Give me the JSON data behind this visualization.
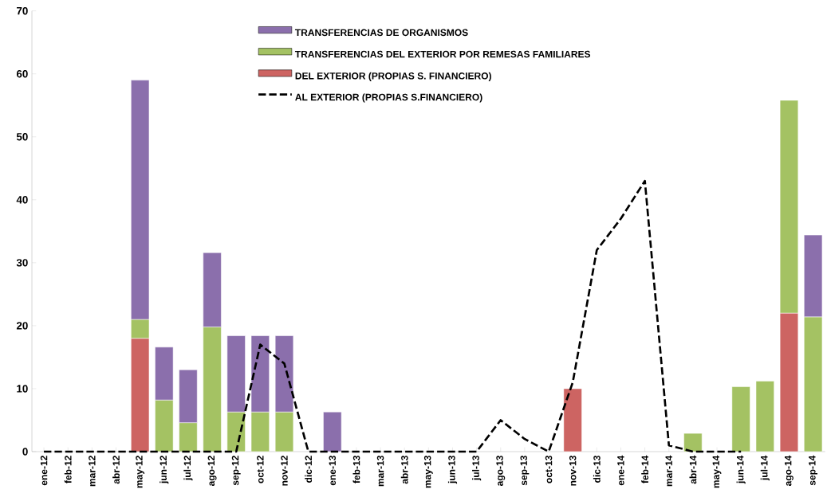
{
  "chart_data": {
    "type": "bar",
    "stacked": true,
    "legend": "top",
    "grid": false,
    "categories": [
      "ene-12",
      "feb-12",
      "mar-12",
      "abr-12",
      "may-12",
      "jun-12",
      "jul-12",
      "ago-12",
      "sep-12",
      "oct-12",
      "nov-12",
      "dic-12",
      "ene-13",
      "feb-13",
      "mar-13",
      "abr-13",
      "may-13",
      "jun-13",
      "jul-13",
      "ago-13",
      "sep-13",
      "oct-13",
      "nov-13",
      "dic-13",
      "ene-14",
      "feb-14",
      "mar-14",
      "abr-14",
      "may-14",
      "jun-14",
      "jul-14",
      "ago-14",
      "sep-14"
    ],
    "series": [
      {
        "name": "DEL EXTERIOR (PROPIAS S. FINANCIERO)",
        "color": "#cd6462",
        "values": [
          0,
          0,
          0,
          0,
          18,
          0,
          0,
          0,
          0,
          0,
          0,
          0,
          0,
          0,
          0,
          0,
          0,
          0,
          0,
          0,
          0,
          0,
          10,
          0,
          0,
          0,
          0,
          0,
          0,
          0,
          0,
          22,
          0
        ]
      },
      {
        "name": "TRANSFERENCIAS DEL EXTERIOR POR REMESAS FAMILIARES",
        "color": "#a4c263",
        "values": [
          0,
          0,
          0,
          0,
          3,
          8.2,
          4.6,
          19.8,
          6.3,
          6.3,
          6.3,
          0,
          0,
          0,
          0,
          0,
          0,
          0,
          0,
          0,
          0,
          0,
          0,
          0,
          0,
          0,
          0,
          2.9,
          0,
          10.3,
          11.2,
          33.8,
          21.4
        ]
      },
      {
        "name": "TRANSFERENCIAS DE ORGANISMOS",
        "color": "#8b6fac",
        "values": [
          0,
          0,
          0,
          0,
          38,
          8.4,
          8.4,
          11.8,
          12.1,
          12.1,
          12.1,
          0,
          6.3,
          0,
          0,
          0,
          0,
          0,
          0,
          0,
          0,
          0,
          0,
          0,
          0,
          0,
          0,
          0,
          0,
          0,
          0,
          0,
          13
        ]
      },
      {
        "name": "AL EXTERIOR (PROPIAS S.FINANCIERO)",
        "type": "line",
        "color": "#000000",
        "line_style": "dashed",
        "marker": "none",
        "values": [
          0,
          0,
          0,
          0,
          0,
          0,
          0,
          0,
          0,
          17,
          14,
          0,
          0,
          0,
          0,
          0,
          0,
          0,
          0,
          5,
          2,
          0,
          11,
          32,
          37,
          43,
          1,
          0,
          0,
          0,
          null,
          null,
          null
        ]
      }
    ],
    "ylim": [
      0,
      70
    ],
    "yticks": [
      0,
      10,
      20,
      30,
      40,
      50,
      60,
      70
    ]
  }
}
